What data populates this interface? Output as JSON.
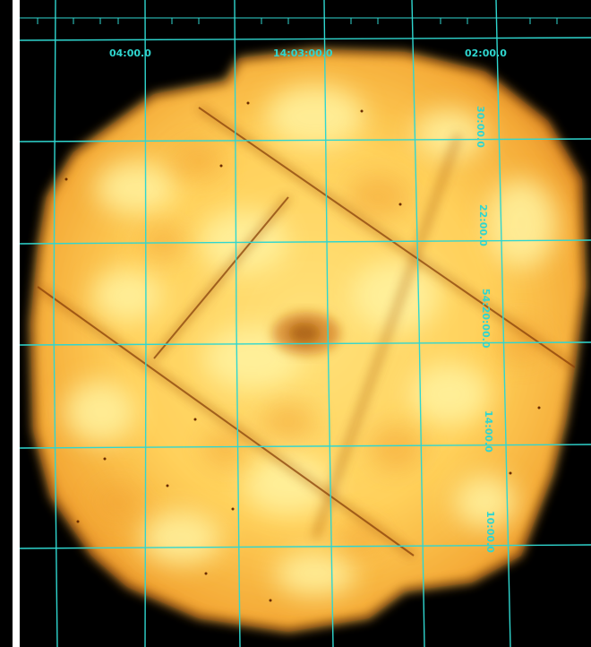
{
  "image": {
    "subject": "x-ray-mosaic",
    "colors": {
      "background": "#000000",
      "grid": "#2fd6cf",
      "emission_core": "#fff6a6",
      "emission_mid": "#ffd060",
      "emission_edge": "#e08a1c",
      "emission_rim": "#8a3a00"
    }
  },
  "axes": {
    "ra_labels": [
      "04:00.0",
      "14:03:00.0",
      "02:00.0"
    ],
    "dec_labels": [
      "30:00.0",
      "22:00.0",
      "54:20:00.0",
      "14:00.0",
      "10:00.0"
    ]
  }
}
